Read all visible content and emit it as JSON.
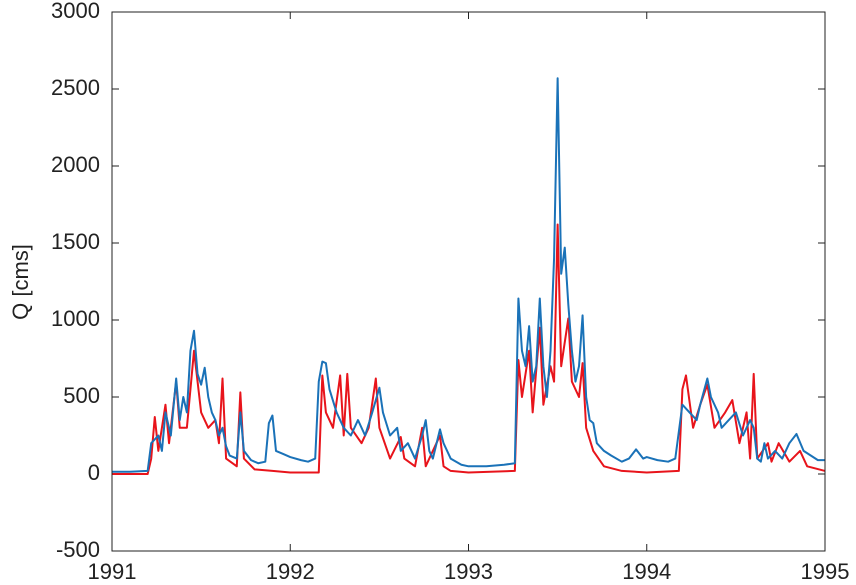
{
  "chart_data": {
    "type": "line",
    "y_label": "Q [cms]",
    "xlim": [
      1991,
      1995
    ],
    "xticks": [
      1991,
      1992,
      1993,
      1994,
      1995
    ],
    "ylim": [
      -500,
      3000
    ],
    "yticks": [
      -500,
      0,
      500,
      1000,
      1500,
      2000,
      2500,
      3000
    ],
    "grid": false,
    "series": [
      {
        "color": "#e8141b",
        "x": [
          1991.0,
          1991.2,
          1991.22,
          1991.24,
          1991.26,
          1991.3,
          1991.32,
          1991.36,
          1991.38,
          1991.42,
          1991.46,
          1991.5,
          1991.54,
          1991.58,
          1991.6,
          1991.62,
          1991.64,
          1991.7,
          1991.72,
          1991.74,
          1991.8,
          1991.9,
          1992.0,
          1992.16,
          1992.18,
          1992.2,
          1992.24,
          1992.28,
          1992.3,
          1992.32,
          1992.34,
          1992.4,
          1992.44,
          1992.48,
          1992.5,
          1992.56,
          1992.62,
          1992.64,
          1992.7,
          1992.74,
          1992.76,
          1992.84,
          1992.86,
          1992.9,
          1993.0,
          1993.26,
          1993.28,
          1993.3,
          1993.34,
          1993.36,
          1993.4,
          1993.42,
          1993.46,
          1993.48,
          1993.5,
          1993.52,
          1993.56,
          1993.58,
          1993.62,
          1993.64,
          1993.66,
          1993.7,
          1993.76,
          1993.86,
          1994.0,
          1994.18,
          1994.2,
          1994.22,
          1994.26,
          1994.3,
          1994.34,
          1994.38,
          1994.44,
          1994.48,
          1994.52,
          1994.56,
          1994.58,
          1994.6,
          1994.62,
          1994.68,
          1994.7,
          1994.74,
          1994.8,
          1994.86,
          1994.9,
          1995.0
        ],
        "values": [
          0,
          0,
          100,
          370,
          150,
          450,
          200,
          600,
          300,
          300,
          800,
          400,
          300,
          350,
          200,
          620,
          100,
          50,
          530,
          100,
          30,
          20,
          10,
          10,
          640,
          400,
          300,
          640,
          250,
          650,
          300,
          200,
          300,
          620,
          300,
          100,
          240,
          100,
          50,
          300,
          50,
          250,
          50,
          20,
          10,
          20,
          740,
          500,
          800,
          400,
          950,
          450,
          700,
          600,
          1620,
          700,
          1010,
          600,
          500,
          720,
          300,
          150,
          50,
          20,
          10,
          20,
          550,
          640,
          300,
          450,
          580,
          300,
          400,
          480,
          200,
          400,
          100,
          650,
          100,
          200,
          80,
          200,
          80,
          150,
          50,
          20
        ]
      },
      {
        "color": "#1a72b8",
        "x": [
          1991.0,
          1991.1,
          1991.2,
          1991.22,
          1991.26,
          1991.28,
          1991.3,
          1991.33,
          1991.36,
          1991.38,
          1991.4,
          1991.42,
          1991.44,
          1991.46,
          1991.48,
          1991.5,
          1991.52,
          1991.54,
          1991.56,
          1991.58,
          1991.6,
          1991.62,
          1991.64,
          1991.66,
          1991.7,
          1991.72,
          1991.74,
          1991.78,
          1991.82,
          1991.86,
          1991.88,
          1991.9,
          1991.92,
          1991.96,
          1992.0,
          1992.06,
          1992.1,
          1992.14,
          1992.16,
          1992.18,
          1992.2,
          1992.22,
          1992.26,
          1992.3,
          1992.34,
          1992.38,
          1992.42,
          1992.46,
          1992.5,
          1992.52,
          1992.56,
          1992.6,
          1992.62,
          1992.66,
          1992.7,
          1992.74,
          1992.76,
          1992.78,
          1992.8,
          1992.84,
          1992.86,
          1992.9,
          1992.96,
          1993.0,
          1993.1,
          1993.2,
          1993.26,
          1993.28,
          1993.3,
          1993.32,
          1993.34,
          1993.36,
          1993.38,
          1993.4,
          1993.42,
          1993.44,
          1993.46,
          1993.48,
          1993.5,
          1993.52,
          1993.54,
          1993.56,
          1993.58,
          1993.6,
          1993.62,
          1993.64,
          1993.66,
          1993.68,
          1993.7,
          1993.72,
          1993.76,
          1993.8,
          1993.86,
          1993.9,
          1993.94,
          1993.98,
          1994.0,
          1994.06,
          1994.12,
          1994.16,
          1994.2,
          1994.24,
          1994.28,
          1994.3,
          1994.34,
          1994.36,
          1994.4,
          1994.42,
          1994.46,
          1994.5,
          1994.54,
          1994.58,
          1994.6,
          1994.62,
          1994.64,
          1994.66,
          1994.68,
          1994.72,
          1994.76,
          1994.8,
          1994.84,
          1994.88,
          1994.92,
          1994.96,
          1995.0
        ],
        "values": [
          15,
          15,
          20,
          200,
          250,
          150,
          400,
          250,
          620,
          350,
          500,
          400,
          800,
          930,
          650,
          580,
          690,
          500,
          400,
          350,
          250,
          300,
          180,
          120,
          100,
          400,
          150,
          90,
          70,
          80,
          330,
          380,
          150,
          130,
          110,
          90,
          80,
          100,
          600,
          730,
          720,
          550,
          400,
          300,
          250,
          350,
          250,
          400,
          560,
          400,
          250,
          300,
          150,
          200,
          100,
          250,
          350,
          150,
          100,
          290,
          200,
          100,
          60,
          50,
          50,
          60,
          70,
          1140,
          800,
          700,
          960,
          600,
          700,
          1140,
          700,
          500,
          800,
          1400,
          2570,
          1300,
          1470,
          1100,
          800,
          600,
          700,
          1030,
          500,
          350,
          330,
          200,
          150,
          120,
          80,
          100,
          160,
          100,
          110,
          90,
          80,
          100,
          450,
          400,
          350,
          450,
          620,
          500,
          400,
          300,
          350,
          400,
          250,
          350,
          300,
          100,
          80,
          200,
          100,
          150,
          100,
          200,
          260,
          150,
          120,
          90,
          90
        ]
      }
    ]
  }
}
